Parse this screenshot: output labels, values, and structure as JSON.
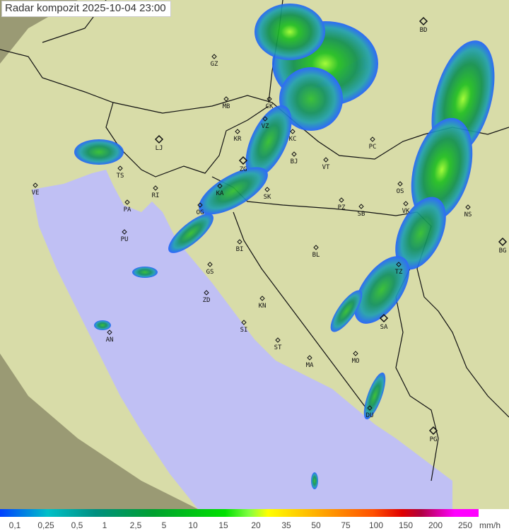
{
  "title": "Radar kompozit  2025-10-04   23:00",
  "legend": {
    "unit": "mm/h",
    "ticks": [
      "0,1",
      "0,25",
      "0,5",
      "1",
      "2,5",
      "5",
      "10",
      "15",
      "20",
      "35",
      "50",
      "75",
      "100",
      "150",
      "200",
      "250"
    ],
    "colors": {
      "low": "#0040ff",
      "mid": "#00a030",
      "high": "#ffff00",
      "extreme": "#ff00ff"
    }
  },
  "map": {
    "colors": {
      "sea": "#c0c0f4",
      "land": "#d8dca8",
      "outside": "#9a9a74",
      "border": "#111111"
    },
    "cities": [
      {
        "code": "BD",
        "major": true
      },
      {
        "code": "GZ"
      },
      {
        "code": "MB"
      },
      {
        "code": "CK"
      },
      {
        "code": "VZ"
      },
      {
        "code": "KR"
      },
      {
        "code": "KC"
      },
      {
        "code": "LJ",
        "major": true
      },
      {
        "code": "TS"
      },
      {
        "code": "ZG",
        "major": true
      },
      {
        "code": "BJ"
      },
      {
        "code": "VT"
      },
      {
        "code": "PC"
      },
      {
        "code": "VE"
      },
      {
        "code": "RI"
      },
      {
        "code": "KA"
      },
      {
        "code": "SK"
      },
      {
        "code": "PA"
      },
      {
        "code": "PZ"
      },
      {
        "code": "SB"
      },
      {
        "code": "OS"
      },
      {
        "code": "VK"
      },
      {
        "code": "NS"
      },
      {
        "code": "PU"
      },
      {
        "code": "OG"
      },
      {
        "code": "BI"
      },
      {
        "code": "BL"
      },
      {
        "code": "BG",
        "major": true
      },
      {
        "code": "GS"
      },
      {
        "code": "TZ"
      },
      {
        "code": "ZD"
      },
      {
        "code": "KN"
      },
      {
        "code": "SI"
      },
      {
        "code": "SA",
        "major": true
      },
      {
        "code": "AN"
      },
      {
        "code": "ST"
      },
      {
        "code": "MO"
      },
      {
        "code": "MA"
      },
      {
        "code": "DU"
      },
      {
        "code": "PG",
        "major": true
      }
    ]
  }
}
